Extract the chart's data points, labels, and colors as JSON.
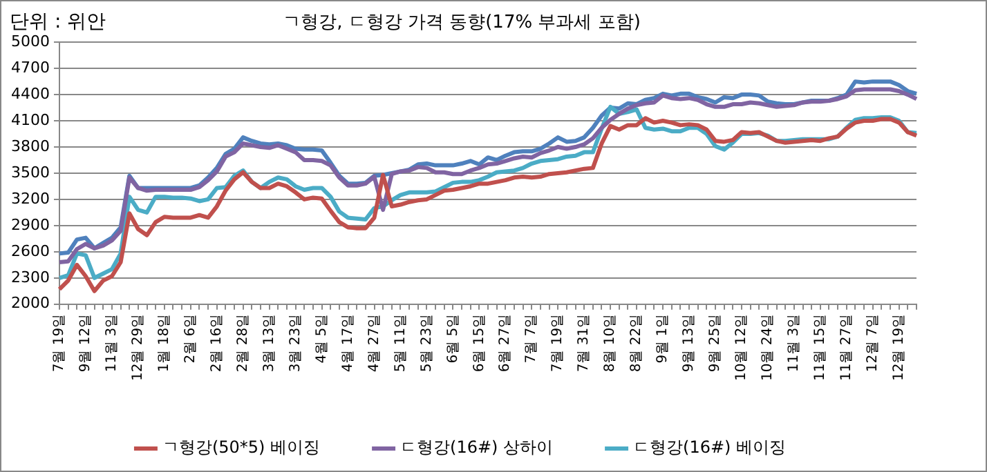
{
  "chart_data": {
    "type": "line",
    "title": "ㄱ형강, ㄷ형강 가격 동향(17% 부과세 포함)",
    "annotations": [
      "단위 : 위안"
    ],
    "categories": [
      "7월 19일",
      null,
      null,
      "9월 12일",
      null,
      null,
      "11월 3일",
      null,
      null,
      "12월 29일",
      null,
      null,
      "1월 18일",
      null,
      null,
      "2월 6일",
      null,
      null,
      "2월 16일",
      null,
      null,
      "2월 28일",
      null,
      null,
      "3월 13일",
      null,
      null,
      "3월 23일",
      null,
      null,
      "4월 5일",
      null,
      null,
      "4월 17일",
      null,
      null,
      "4월 27일",
      null,
      null,
      "5월 11일",
      null,
      null,
      "5월 23일",
      null,
      null,
      "6월 5일",
      null,
      null,
      "6월 15일",
      null,
      null,
      "6월 27일",
      null,
      null,
      "7월 7일",
      null,
      null,
      "7월 19일",
      null,
      null,
      "7월 31일",
      null,
      null,
      "8월 10일",
      null,
      null,
      "8월 22일",
      null,
      null,
      "9월 1일",
      null,
      null,
      "9월 13일",
      null,
      null,
      "9월 25일",
      null,
      null,
      "10월 12일",
      null,
      null,
      "10월 24일",
      null,
      null,
      "11월 3일",
      null,
      null,
      "11월 15일",
      null,
      null,
      "11월 27일",
      null,
      null,
      "12월 7일",
      null,
      null,
      "12월 19일",
      null,
      null
    ],
    "series": [
      {
        "name": "ㄱ형강(50*5) 베이징",
        "color": "#c0504d",
        "values": [
          2170,
          2270,
          2450,
          2320,
          2150,
          2270,
          2320,
          2480,
          3040,
          2860,
          2790,
          2940,
          3000,
          2990,
          2990,
          2990,
          3020,
          2990,
          3120,
          3300,
          3430,
          3510,
          3400,
          3330,
          3330,
          3380,
          3350,
          3280,
          3200,
          3220,
          3210,
          3070,
          2940,
          2880,
          2870,
          2870,
          2990,
          3480,
          3120,
          3140,
          3170,
          3190,
          3200,
          3250,
          3300,
          3310,
          3330,
          3350,
          3380,
          3380,
          3400,
          3420,
          3450,
          3460,
          3450,
          3460,
          3490,
          3500,
          3510,
          3530,
          3550,
          3560,
          3840,
          4040,
          4000,
          4050,
          4050,
          4130,
          4080,
          4100,
          4080,
          4050,
          4060,
          4050,
          4000,
          3870,
          3860,
          3880,
          3970,
          3960,
          3970,
          3920,
          3870,
          3850,
          3860,
          3870,
          3880,
          3870,
          3900,
          3920,
          4010,
          4080,
          4100,
          4100,
          4120,
          4120,
          4080,
          3970,
          3930
        ]
      },
      {
        "name": "ㄷ형강(16#) 상하이",
        "color": "#8064a2",
        "values": [
          2480,
          2490,
          2630,
          2690,
          2640,
          2670,
          2730,
          2840,
          3450,
          3330,
          3300,
          3310,
          3310,
          3310,
          3310,
          3310,
          3340,
          3420,
          3520,
          3690,
          3740,
          3840,
          3820,
          3800,
          3790,
          3820,
          3780,
          3740,
          3650,
          3650,
          3640,
          3590,
          3450,
          3360,
          3360,
          3380,
          3460,
          3080,
          3490,
          3520,
          3530,
          3570,
          3560,
          3510,
          3510,
          3490,
          3490,
          3530,
          3560,
          3600,
          3610,
          3640,
          3670,
          3690,
          3680,
          3730,
          3760,
          3800,
          3780,
          3800,
          3830,
          3900,
          4020,
          4110,
          4180,
          4240,
          4280,
          4300,
          4310,
          4390,
          4360,
          4350,
          4360,
          4340,
          4290,
          4260,
          4260,
          4290,
          4290,
          4310,
          4300,
          4280,
          4260,
          4270,
          4280,
          4310,
          4320,
          4320,
          4330,
          4350,
          4380,
          4450,
          4460,
          4460,
          4460,
          4460,
          4440,
          4400,
          4350
        ]
      },
      {
        "name": "ㄷ형강(16#) 베이징",
        "color": "#4bacc6",
        "values": [
          2300,
          2330,
          2580,
          2560,
          2300,
          2350,
          2400,
          2580,
          3230,
          3080,
          3050,
          3230,
          3230,
          3220,
          3220,
          3210,
          3180,
          3200,
          3330,
          3340,
          3470,
          3530,
          3400,
          3330,
          3400,
          3450,
          3430,
          3350,
          3310,
          3330,
          3330,
          3230,
          3060,
          2990,
          2980,
          2970,
          3100,
          3120,
          3190,
          3250,
          3280,
          3280,
          3280,
          3290,
          3340,
          3390,
          3400,
          3400,
          3420,
          3460,
          3510,
          3520,
          3530,
          3560,
          3610,
          3640,
          3650,
          3660,
          3690,
          3700,
          3740,
          3740,
          4010,
          4260,
          4180,
          4200,
          4230,
          4020,
          4000,
          4010,
          3980,
          3980,
          4020,
          4020,
          3950,
          3810,
          3770,
          3850,
          3950,
          3950,
          3960,
          3930,
          3870,
          3870,
          3880,
          3890,
          3890,
          3890,
          3890,
          3920,
          4020,
          4110,
          4130,
          4130,
          4140,
          4140,
          4100,
          3970,
          3960
        ]
      },
      {
        "color": "#4f81bd",
        "values": [
          2580,
          2590,
          2740,
          2760,
          2640,
          2700,
          2760,
          2880,
          3470,
          3330,
          3330,
          3330,
          3330,
          3330,
          3330,
          3330,
          3360,
          3450,
          3560,
          3720,
          3780,
          3910,
          3870,
          3840,
          3830,
          3840,
          3820,
          3780,
          3770,
          3770,
          3760,
          3620,
          3470,
          3380,
          3380,
          3390,
          3470,
          3480,
          3500,
          3520,
          3540,
          3600,
          3610,
          3590,
          3590,
          3590,
          3610,
          3640,
          3600,
          3680,
          3650,
          3700,
          3740,
          3750,
          3750,
          3780,
          3840,
          3910,
          3860,
          3870,
          3910,
          4020,
          4160,
          4250,
          4240,
          4300,
          4290,
          4340,
          4360,
          4410,
          4390,
          4410,
          4410,
          4370,
          4350,
          4310,
          4370,
          4360,
          4400,
          4400,
          4390,
          4320,
          4300,
          4290,
          4290,
          4310,
          4330,
          4330,
          4330,
          4360,
          4400,
          4550,
          4540,
          4550,
          4550,
          4550,
          4510,
          4440,
          4410
        ]
      }
    ],
    "ylim": [
      2000,
      5000
    ],
    "yticks": [
      2000,
      2300,
      2600,
      2900,
      3200,
      3500,
      3800,
      4100,
      4400,
      4700,
      5000
    ],
    "grid": "y",
    "legend": "bottom",
    "marker": "none",
    "line_style": "solid"
  }
}
